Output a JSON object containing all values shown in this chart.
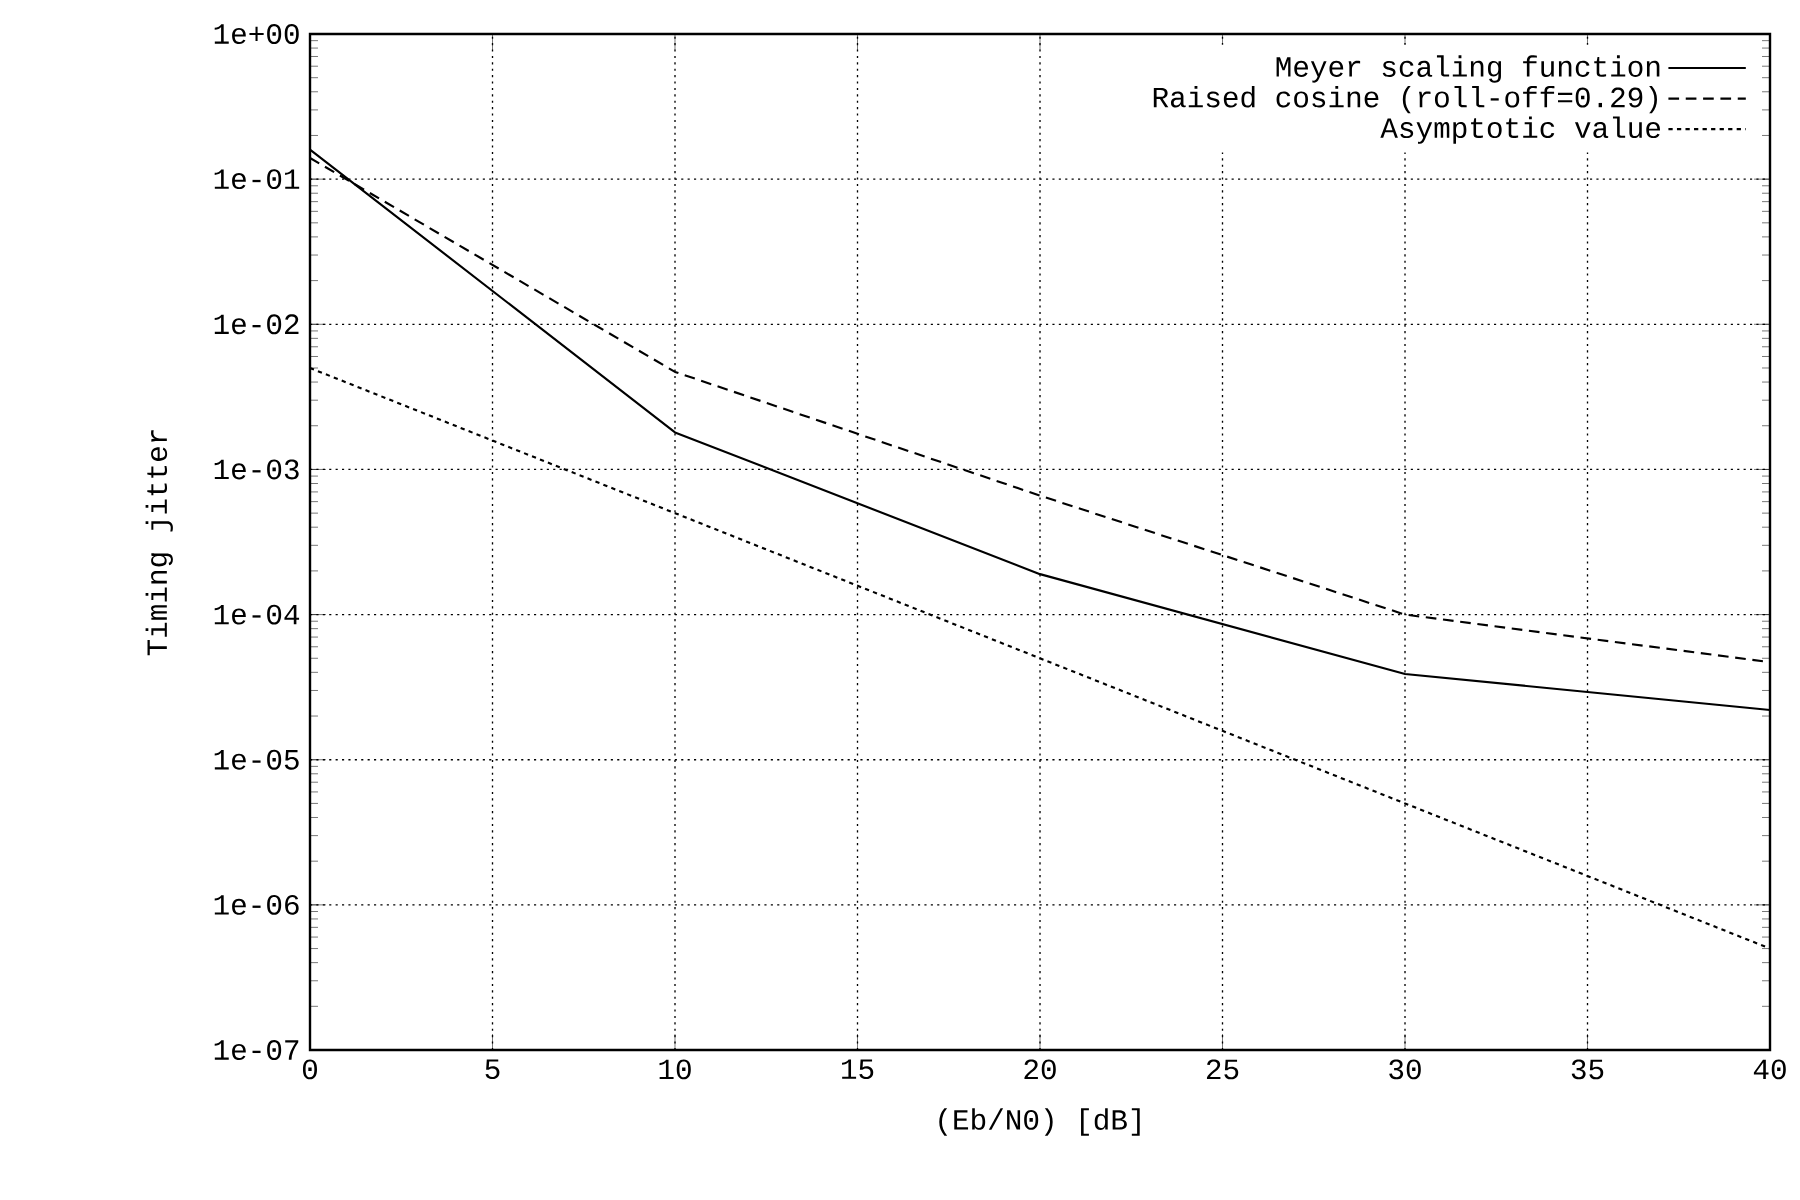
{
  "chart_data": {
    "type": "line",
    "xlabel": "(Eb/N0) [dB]",
    "ylabel": "Timing jitter",
    "x": [
      0,
      10,
      20,
      30,
      40
    ],
    "series": [
      {
        "name": "Meyer scaling function",
        "color": "#000000",
        "line_style": "solid",
        "values": [
          0.16,
          0.0018,
          0.00019,
          3.9e-05,
          2.2e-05
        ]
      },
      {
        "name": "Raised cosine (roll-off=0.29)",
        "color": "#000000",
        "line_style": "dashed",
        "values": [
          0.14,
          0.0047,
          0.00066,
          0.0001,
          4.7e-05
        ]
      },
      {
        "name": "Asymptotic value",
        "color": "#000000",
        "line_style": "dotted",
        "values": [
          0.005,
          0.0005,
          5e-05,
          5e-06,
          5e-07
        ]
      }
    ],
    "xlim": [
      0,
      40
    ],
    "xticks": [
      0,
      5,
      10,
      15,
      20,
      25,
      30,
      35,
      40
    ],
    "ylim": [
      1e-07,
      1
    ],
    "yticks": [
      {
        "value": 1e-07,
        "label": "1e-07"
      },
      {
        "value": 1e-06,
        "label": "1e-06"
      },
      {
        "value": 1e-05,
        "label": "1e-05"
      },
      {
        "value": 0.0001,
        "label": "1e-04"
      },
      {
        "value": 0.001,
        "label": "1e-03"
      },
      {
        "value": 0.01,
        "label": "1e-02"
      },
      {
        "value": 0.1,
        "label": "1e-01"
      },
      {
        "value": 1,
        "label": "1e+00"
      }
    ],
    "log": true,
    "grid": true,
    "legend": "top right"
  }
}
